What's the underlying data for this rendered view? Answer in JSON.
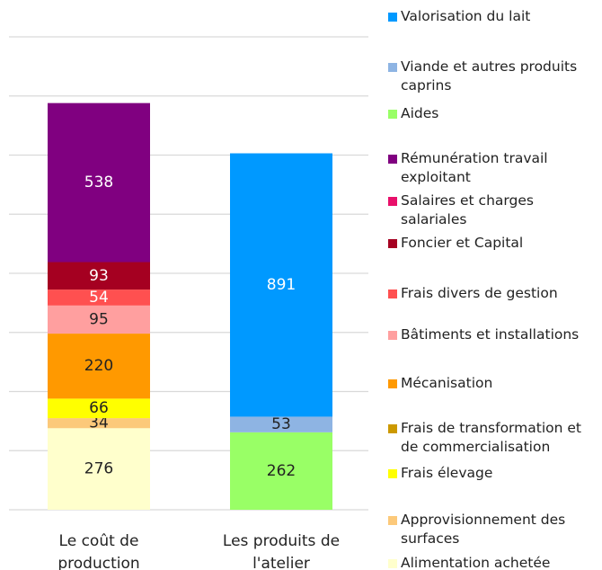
{
  "chart_data": {
    "type": "stacked_bar",
    "categories": [
      "Le coût de production",
      "Les produits de l'atelier"
    ],
    "ylim": [
      0,
      1600
    ],
    "yticks": [
      0,
      200,
      400,
      600,
      800,
      1000,
      1200,
      1400,
      1600
    ],
    "grid": true,
    "series": [
      {
        "name": "Valorisation du lait",
        "color": "#0099ff",
        "values": [
          null,
          891
        ]
      },
      {
        "name": "Viande et autres produits caprins",
        "color": "#8eb4e3",
        "values": [
          null,
          53
        ]
      },
      {
        "name": "Aides",
        "color": "#99ff66",
        "values": [
          null,
          262
        ]
      },
      {
        "name": "Rémunération travail exploitant",
        "color": "#800080",
        "values": [
          538,
          null
        ]
      },
      {
        "name": "Salaires et charges salariales",
        "color": "#e8106a",
        "values": [
          null,
          null
        ]
      },
      {
        "name": "Foncier et Capital",
        "color": "#a50021",
        "values": [
          93,
          null
        ]
      },
      {
        "name": "Frais divers de gestion",
        "color": "#ff5050",
        "values": [
          54,
          null
        ]
      },
      {
        "name": "Bâtiments et installations",
        "color": "#ff9f9f",
        "values": [
          95,
          null
        ]
      },
      {
        "name": "Mécanisation",
        "color": "#ff9900",
        "values": [
          220,
          null
        ]
      },
      {
        "name": "Frais de transformation et de commercialisation",
        "color": "#cc9900",
        "values": [
          null,
          null
        ]
      },
      {
        "name": "Frais élevage",
        "color": "#ffff00",
        "values": [
          66,
          null
        ]
      },
      {
        "name": "Approvisionnement des surfaces",
        "color": "#fcc97a",
        "values": [
          34,
          null
        ]
      },
      {
        "name": "Alimentation achetée",
        "color": "#ffffcc",
        "values": [
          276,
          null
        ]
      }
    ]
  }
}
